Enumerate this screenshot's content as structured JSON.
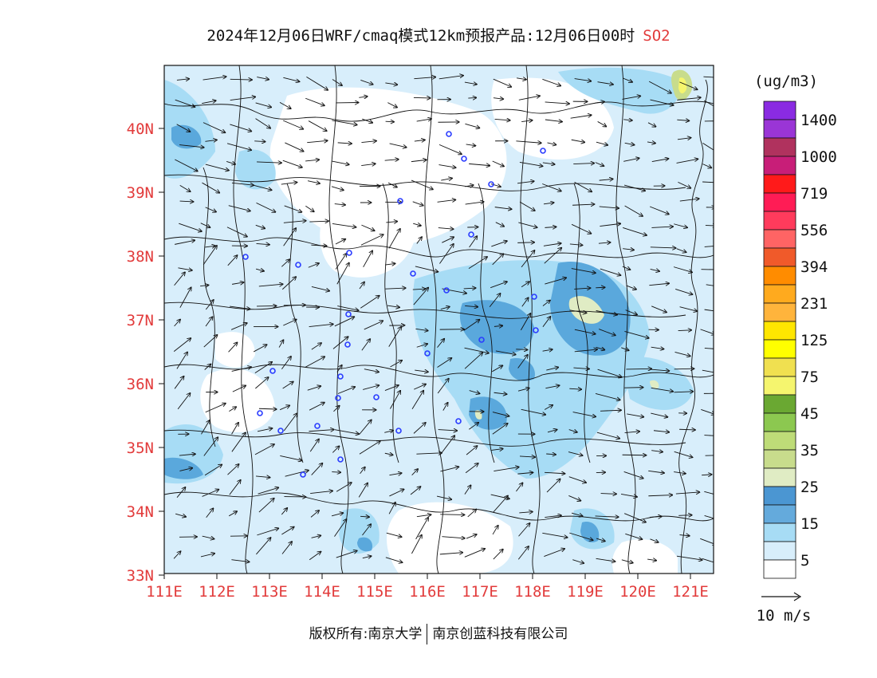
{
  "title": {
    "main": "2024年12月06日WRF/cmaq模式12km预报产品:12月06日00时",
    "species": "SO2"
  },
  "colors": {
    "accent": "#e23b3b",
    "land_line": "#111111",
    "station": "#2a3cff",
    "field_5": "#d8eefb",
    "field_15": "#a7dcf5",
    "field_25": "#5aa8dc",
    "field_high": "#3d86c6",
    "hotspot": "#e0ecc4"
  },
  "axes": {
    "lat_ticks": [
      "40N",
      "39N",
      "38N",
      "37N",
      "36N",
      "35N",
      "34N",
      "33N"
    ],
    "lon_ticks": [
      "111E",
      "112E",
      "113E",
      "114E",
      "115E",
      "116E",
      "117E",
      "118E",
      "119E",
      "120E",
      "121E"
    ]
  },
  "legend": {
    "unit": "(ug/m3)",
    "levels": [
      {
        "color": "#8a2be2",
        "label": "1400"
      },
      {
        "color": "#9a35d6",
        "label": ""
      },
      {
        "color": "#b0325e",
        "label": "1000"
      },
      {
        "color": "#c81e78",
        "label": ""
      },
      {
        "color": "#ff1a1a",
        "label": "719"
      },
      {
        "color": "#ff1c55",
        "label": ""
      },
      {
        "color": "#ff3b5c",
        "label": "556"
      },
      {
        "color": "#ff6464",
        "label": ""
      },
      {
        "color": "#f05a2a",
        "label": "394"
      },
      {
        "color": "#ff8c00",
        "label": ""
      },
      {
        "color": "#ffaa1e",
        "label": "231"
      },
      {
        "color": "#ffb43c",
        "label": ""
      },
      {
        "color": "#ffe600",
        "label": "125"
      },
      {
        "color": "#ffff00",
        "label": ""
      },
      {
        "color": "#f0e050",
        "label": "75"
      },
      {
        "color": "#f5f56e",
        "label": ""
      },
      {
        "color": "#6aa832",
        "label": "45"
      },
      {
        "color": "#8cc850",
        "label": ""
      },
      {
        "color": "#bedc78",
        "label": "35"
      },
      {
        "color": "#c8dc8c",
        "label": ""
      },
      {
        "color": "#e0ecc4",
        "label": "25"
      },
      {
        "color": "#4b96d2",
        "label": ""
      },
      {
        "color": "#64aadc",
        "label": "15"
      },
      {
        "color": "#a7dcf5",
        "label": ""
      },
      {
        "color": "#d8eefb",
        "label": "5"
      },
      {
        "color": "#ffffff",
        "label": ""
      }
    ]
  },
  "wind_reference": {
    "label": "10 m/s"
  },
  "copyright": {
    "left": "版权所有:南京大学",
    "right": "南京创蓝科技有限公司"
  }
}
